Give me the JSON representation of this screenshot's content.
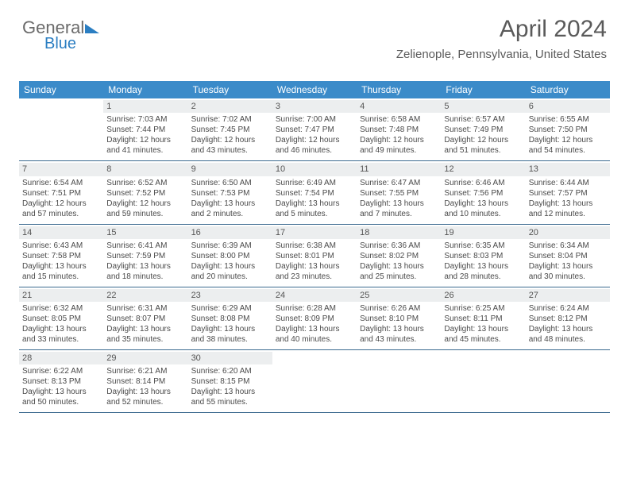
{
  "logo": {
    "text_top": "General",
    "text_bottom": "Blue"
  },
  "header": {
    "month_year": "April 2024",
    "location": "Zelienople, Pennsylvania, United States"
  },
  "colors": {
    "header_bar": "#3b8bc9",
    "header_text": "#ffffff",
    "daynum_bg": "#eceeef",
    "week_border": "#3b6a8f",
    "brand_blue": "#2b7ec2",
    "text": "#4a4a4a"
  },
  "day_names": [
    "Sunday",
    "Monday",
    "Tuesday",
    "Wednesday",
    "Thursday",
    "Friday",
    "Saturday"
  ],
  "weeks": [
    [
      null,
      {
        "n": "1",
        "sr": "7:03 AM",
        "ss": "7:44 PM",
        "dl": "12 hours and 41 minutes."
      },
      {
        "n": "2",
        "sr": "7:02 AM",
        "ss": "7:45 PM",
        "dl": "12 hours and 43 minutes."
      },
      {
        "n": "3",
        "sr": "7:00 AM",
        "ss": "7:47 PM",
        "dl": "12 hours and 46 minutes."
      },
      {
        "n": "4",
        "sr": "6:58 AM",
        "ss": "7:48 PM",
        "dl": "12 hours and 49 minutes."
      },
      {
        "n": "5",
        "sr": "6:57 AM",
        "ss": "7:49 PM",
        "dl": "12 hours and 51 minutes."
      },
      {
        "n": "6",
        "sr": "6:55 AM",
        "ss": "7:50 PM",
        "dl": "12 hours and 54 minutes."
      }
    ],
    [
      {
        "n": "7",
        "sr": "6:54 AM",
        "ss": "7:51 PM",
        "dl": "12 hours and 57 minutes."
      },
      {
        "n": "8",
        "sr": "6:52 AM",
        "ss": "7:52 PM",
        "dl": "12 hours and 59 minutes."
      },
      {
        "n": "9",
        "sr": "6:50 AM",
        "ss": "7:53 PM",
        "dl": "13 hours and 2 minutes."
      },
      {
        "n": "10",
        "sr": "6:49 AM",
        "ss": "7:54 PM",
        "dl": "13 hours and 5 minutes."
      },
      {
        "n": "11",
        "sr": "6:47 AM",
        "ss": "7:55 PM",
        "dl": "13 hours and 7 minutes."
      },
      {
        "n": "12",
        "sr": "6:46 AM",
        "ss": "7:56 PM",
        "dl": "13 hours and 10 minutes."
      },
      {
        "n": "13",
        "sr": "6:44 AM",
        "ss": "7:57 PM",
        "dl": "13 hours and 12 minutes."
      }
    ],
    [
      {
        "n": "14",
        "sr": "6:43 AM",
        "ss": "7:58 PM",
        "dl": "13 hours and 15 minutes."
      },
      {
        "n": "15",
        "sr": "6:41 AM",
        "ss": "7:59 PM",
        "dl": "13 hours and 18 minutes."
      },
      {
        "n": "16",
        "sr": "6:39 AM",
        "ss": "8:00 PM",
        "dl": "13 hours and 20 minutes."
      },
      {
        "n": "17",
        "sr": "6:38 AM",
        "ss": "8:01 PM",
        "dl": "13 hours and 23 minutes."
      },
      {
        "n": "18",
        "sr": "6:36 AM",
        "ss": "8:02 PM",
        "dl": "13 hours and 25 minutes."
      },
      {
        "n": "19",
        "sr": "6:35 AM",
        "ss": "8:03 PM",
        "dl": "13 hours and 28 minutes."
      },
      {
        "n": "20",
        "sr": "6:34 AM",
        "ss": "8:04 PM",
        "dl": "13 hours and 30 minutes."
      }
    ],
    [
      {
        "n": "21",
        "sr": "6:32 AM",
        "ss": "8:05 PM",
        "dl": "13 hours and 33 minutes."
      },
      {
        "n": "22",
        "sr": "6:31 AM",
        "ss": "8:07 PM",
        "dl": "13 hours and 35 minutes."
      },
      {
        "n": "23",
        "sr": "6:29 AM",
        "ss": "8:08 PM",
        "dl": "13 hours and 38 minutes."
      },
      {
        "n": "24",
        "sr": "6:28 AM",
        "ss": "8:09 PM",
        "dl": "13 hours and 40 minutes."
      },
      {
        "n": "25",
        "sr": "6:26 AM",
        "ss": "8:10 PM",
        "dl": "13 hours and 43 minutes."
      },
      {
        "n": "26",
        "sr": "6:25 AM",
        "ss": "8:11 PM",
        "dl": "13 hours and 45 minutes."
      },
      {
        "n": "27",
        "sr": "6:24 AM",
        "ss": "8:12 PM",
        "dl": "13 hours and 48 minutes."
      }
    ],
    [
      {
        "n": "28",
        "sr": "6:22 AM",
        "ss": "8:13 PM",
        "dl": "13 hours and 50 minutes."
      },
      {
        "n": "29",
        "sr": "6:21 AM",
        "ss": "8:14 PM",
        "dl": "13 hours and 52 minutes."
      },
      {
        "n": "30",
        "sr": "6:20 AM",
        "ss": "8:15 PM",
        "dl": "13 hours and 55 minutes."
      },
      null,
      null,
      null,
      null
    ]
  ],
  "labels": {
    "sunrise_prefix": "Sunrise: ",
    "sunset_prefix": "Sunset: ",
    "daylight_prefix": "Daylight: "
  }
}
